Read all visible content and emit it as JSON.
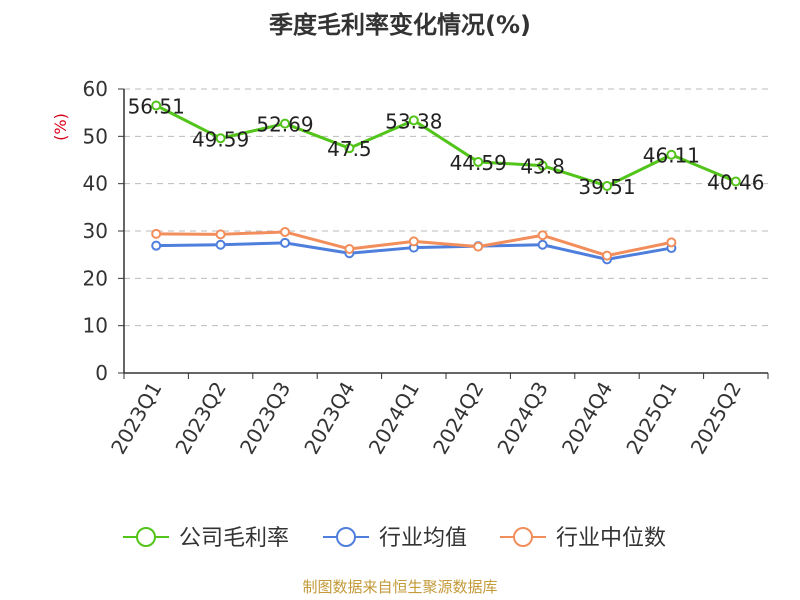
{
  "chart_data": {
    "type": "line",
    "title": "季度毛利率变化情况(%)",
    "ylabel": "(%)",
    "categories": [
      "2023Q1",
      "2023Q2",
      "2023Q3",
      "2023Q4",
      "2024Q1",
      "2024Q2",
      "2024Q3",
      "2024Q4",
      "2025Q1",
      "2025Q2"
    ],
    "ylim": [
      0,
      60
    ],
    "yticks": [
      0,
      10,
      20,
      30,
      40,
      50,
      60
    ],
    "grid": true,
    "legend_position": "bottom",
    "series": [
      {
        "name": "公司毛利率",
        "color": "#52c41a",
        "values": [
          56.51,
          49.59,
          52.69,
          47.5,
          53.38,
          44.59,
          43.8,
          39.51,
          46.11,
          40.46
        ]
      },
      {
        "name": "行业均值",
        "color": "#4f7fdc",
        "values": [
          26.9,
          27.1,
          27.5,
          25.3,
          26.5,
          26.8,
          27.1,
          24.0,
          26.4,
          null
        ]
      },
      {
        "name": "行业中位数",
        "color": "#f28e5c",
        "values": [
          29.4,
          29.3,
          29.8,
          26.2,
          27.8,
          26.7,
          29.1,
          24.8,
          27.6,
          null
        ]
      }
    ]
  },
  "footer": {
    "source": "制图数据来自恒生聚源数据库"
  },
  "colors": {
    "title": "#333333",
    "ylabel": "#d9001b",
    "axis": "#333333",
    "grid": "#bbbbbb",
    "footer": "#c49a3a"
  }
}
